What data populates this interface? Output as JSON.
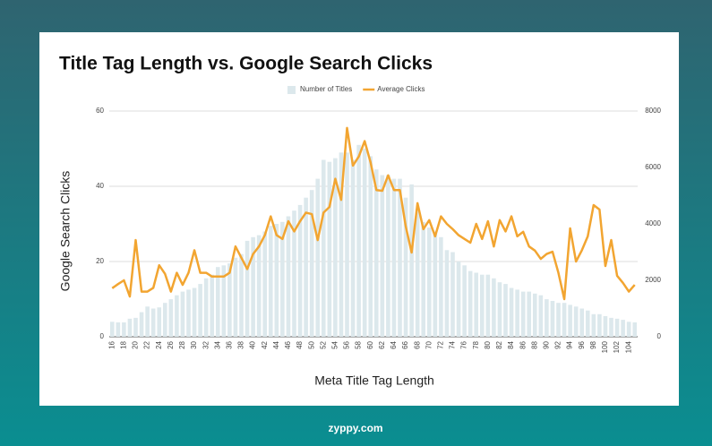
{
  "chart_data": {
    "type": "combo",
    "title": "Title Tag Length vs. Google Search Clicks",
    "x_label": "Meta Title Tag Length",
    "y_label": "Google Search Clicks",
    "categories": [
      "16",
      null,
      "18",
      null,
      "20",
      null,
      "22",
      null,
      "24",
      null,
      "26",
      null,
      "28",
      null,
      "30",
      null,
      "32",
      null,
      "34",
      null,
      "36",
      null,
      "38",
      null,
      "40",
      null,
      "42",
      null,
      "44",
      null,
      "46",
      null,
      "48",
      null,
      "50",
      null,
      "52",
      null,
      "54",
      null,
      "56",
      null,
      "58",
      null,
      "60",
      null,
      "62",
      null,
      "64",
      null,
      "66",
      null,
      "68",
      null,
      "70",
      null,
      "72",
      null,
      "74",
      null,
      "76",
      null,
      "78",
      null,
      "80",
      null,
      "82",
      null,
      "84",
      null,
      "86",
      null,
      "88",
      null,
      "90",
      null,
      "92",
      null,
      "94",
      null,
      "96",
      null,
      "98",
      null,
      "100",
      null,
      "102",
      null,
      "104",
      null
    ],
    "series": [
      {
        "name": "Number of Titles",
        "type": "bar",
        "axis": "y2",
        "color": "#dce8ec",
        "values": [
          530,
          510,
          510,
          640,
          670,
          870,
          1070,
          1000,
          1040,
          1200,
          1330,
          1470,
          1600,
          1670,
          1730,
          1870,
          2070,
          2200,
          2470,
          2530,
          2600,
          2800,
          2930,
          3400,
          3530,
          3600,
          3730,
          3930,
          4000,
          4070,
          4270,
          4470,
          4670,
          4930,
          5200,
          5600,
          6270,
          6200,
          6330,
          6530,
          6530,
          6270,
          6800,
          6670,
          6400,
          5930,
          5730,
          5730,
          5600,
          5600,
          4930,
          5400,
          4530,
          4070,
          3870,
          3730,
          3530,
          3070,
          3000,
          2670,
          2530,
          2330,
          2270,
          2200,
          2200,
          2070,
          1930,
          1870,
          1730,
          1670,
          1600,
          1600,
          1530,
          1470,
          1330,
          1270,
          1200,
          1200,
          1130,
          1070,
          1000,
          930,
          800,
          800,
          730,
          670,
          640,
          600,
          530,
          510
        ]
      },
      {
        "name": "Average Clicks",
        "type": "line",
        "axis": "y",
        "color": "#f2a531",
        "values": [
          12.9,
          14,
          15,
          10.7,
          25.7,
          12,
          12,
          13,
          19,
          16.7,
          12,
          17,
          13.8,
          17,
          23,
          17,
          17,
          16,
          16,
          16,
          17,
          24,
          21,
          18,
          22,
          24,
          27,
          32,
          27,
          26,
          30.7,
          28,
          30.7,
          33,
          32.6,
          25.7,
          33,
          34.5,
          42,
          36.4,
          55.5,
          45.5,
          47.9,
          52,
          46.4,
          39,
          38.8,
          42.9,
          39,
          39,
          29.3,
          22.4,
          35.5,
          28.6,
          31,
          26.7,
          32,
          30,
          28.6,
          27,
          26,
          25,
          30,
          26,
          30.7,
          24,
          31,
          28,
          32,
          26.7,
          27.9,
          24,
          22.9,
          20.7,
          22,
          22.6,
          17,
          10,
          28.8,
          20,
          23,
          26.7,
          35,
          33.8,
          18.8,
          25.7,
          16.2,
          14.3,
          12,
          13.8
        ]
      }
    ],
    "ylim": [
      0,
      60
    ],
    "yticks": [
      0,
      20,
      40,
      60
    ],
    "y2lim": [
      0,
      8000
    ],
    "y2ticks": [
      0,
      2000,
      4000,
      6000,
      8000
    ],
    "grid": true,
    "legend": "top"
  },
  "footer": "zyppy.com"
}
